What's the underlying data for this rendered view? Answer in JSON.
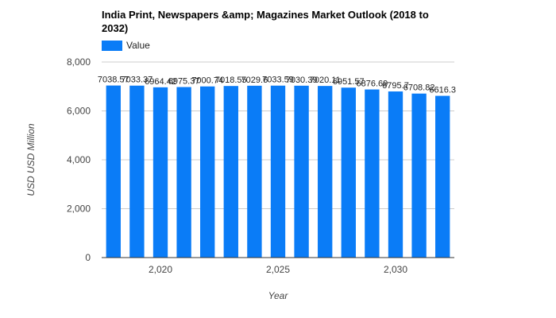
{
  "chart_data": {
    "type": "bar",
    "title": "India Print, Newspapers &amp; Magazines Market Outlook (2018 to 2032)",
    "xlabel": "Year",
    "ylabel": "USD USD Million",
    "legend": {
      "position": "top-left",
      "entries": [
        "Value"
      ]
    },
    "grid": true,
    "ylim": [
      0,
      8000
    ],
    "yticks": [
      "0",
      "2,000",
      "4,000",
      "6,000",
      "8,000"
    ],
    "xticks": [
      "2,020",
      "2,025",
      "2,030"
    ],
    "categories": [
      2018,
      2019,
      2020,
      2021,
      2022,
      2023,
      2024,
      2025,
      2026,
      2027,
      2028,
      2029,
      2030,
      2031,
      2032
    ],
    "series": [
      {
        "name": "Value",
        "color": "#0a7cf7",
        "values": [
          7038.57,
          7033.37,
          6964.42,
          6975.37,
          7000.74,
          7018.55,
          7029.6,
          7033.59,
          7030.39,
          7020.11,
          6951.57,
          6876.69,
          6795.7,
          6708.82,
          6616.3
        ],
        "labels": [
          "7038.57",
          "7033.37",
          "6964.42",
          "6975.37",
          "7000.74",
          "7018.55",
          "7029.6",
          "7033.59",
          "7030.39",
          "7020.11",
          "6951.57",
          "6876.69",
          "6795.7",
          "6708.82",
          "6616.3"
        ]
      }
    ]
  }
}
